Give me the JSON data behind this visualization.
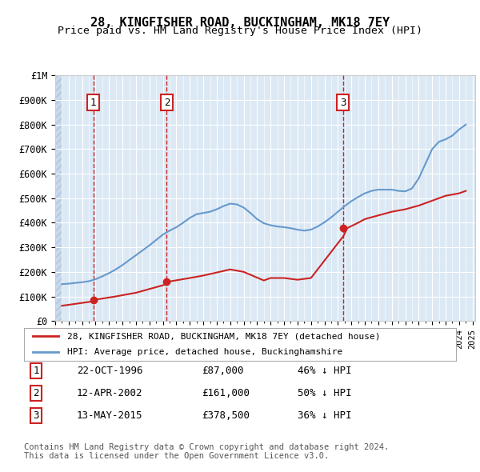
{
  "title": "28, KINGFISHER ROAD, BUCKINGHAM, MK18 7EY",
  "subtitle": "Price paid vs. HM Land Registry's House Price Index (HPI)",
  "ylabel": "",
  "ylim": [
    0,
    1000000
  ],
  "yticks": [
    0,
    100000,
    200000,
    300000,
    400000,
    500000,
    600000,
    700000,
    800000,
    900000,
    1000000
  ],
  "ytick_labels": [
    "£0",
    "£100K",
    "£200K",
    "£300K",
    "£400K",
    "£500K",
    "£600K",
    "£700K",
    "£800K",
    "£900K",
    "£1M"
  ],
  "background_color": "#ffffff",
  "plot_bg_color": "#dce9f5",
  "hatch_color": "#c0d0e8",
  "grid_color": "#ffffff",
  "sale_dates": [
    "1996-10-22",
    "2002-04-12",
    "2015-05-13"
  ],
  "sale_prices": [
    87000,
    161000,
    378500
  ],
  "sale_labels": [
    "1",
    "2",
    "3"
  ],
  "hpi_line_color": "#6699cc",
  "price_line_color": "#cc2222",
  "legend_label_price": "28, KINGFISHER ROAD, BUCKINGHAM, MK18 7EY (detached house)",
  "legend_label_hpi": "HPI: Average price, detached house, Buckinghamshire",
  "table_rows": [
    [
      "1",
      "22-OCT-1996",
      "£87,000",
      "46% ↓ HPI"
    ],
    [
      "2",
      "12-APR-2002",
      "£161,000",
      "50% ↓ HPI"
    ],
    [
      "3",
      "13-MAY-2015",
      "£378,500",
      "36% ↓ HPI"
    ]
  ],
  "footer_text": "Contains HM Land Registry data © Crown copyright and database right 2024.\nThis data is licensed under the Open Government Licence v3.0.",
  "title_fontsize": 11,
  "subtitle_fontsize": 10,
  "tick_fontsize": 8.5,
  "hpi_data_x": [
    1994.5,
    1995.0,
    1995.5,
    1996.0,
    1996.5,
    1997.0,
    1997.5,
    1998.0,
    1998.5,
    1999.0,
    1999.5,
    2000.0,
    2000.5,
    2001.0,
    2001.5,
    2002.0,
    2002.5,
    2003.0,
    2003.5,
    2004.0,
    2004.5,
    2005.0,
    2005.5,
    2006.0,
    2006.5,
    2007.0,
    2007.5,
    2008.0,
    2008.5,
    2009.0,
    2009.5,
    2010.0,
    2010.5,
    2011.0,
    2011.5,
    2012.0,
    2012.5,
    2013.0,
    2013.5,
    2014.0,
    2014.5,
    2015.0,
    2015.5,
    2016.0,
    2016.5,
    2017.0,
    2017.5,
    2018.0,
    2018.5,
    2019.0,
    2019.5,
    2020.0,
    2020.5,
    2021.0,
    2021.5,
    2022.0,
    2022.5,
    2023.0,
    2023.5,
    2024.0,
    2024.5
  ],
  "hpi_data_y": [
    150000,
    152000,
    155000,
    158000,
    162000,
    170000,
    182000,
    195000,
    210000,
    228000,
    248000,
    268000,
    288000,
    308000,
    330000,
    352000,
    368000,
    382000,
    400000,
    420000,
    435000,
    440000,
    445000,
    455000,
    468000,
    478000,
    475000,
    462000,
    440000,
    415000,
    398000,
    390000,
    385000,
    382000,
    378000,
    372000,
    368000,
    372000,
    385000,
    402000,
    422000,
    445000,
    468000,
    488000,
    505000,
    520000,
    530000,
    535000,
    535000,
    535000,
    530000,
    528000,
    540000,
    580000,
    640000,
    700000,
    730000,
    740000,
    755000,
    780000,
    800000
  ],
  "price_data_x": [
    1994.5,
    1996.83,
    1997.0,
    1998.5,
    2000.0,
    2002.3,
    2002.5,
    2004.0,
    2005.0,
    2007.0,
    2008.0,
    2009.5,
    2010.0,
    2011.0,
    2012.0,
    2013.0,
    2015.4,
    2015.7,
    2016.5,
    2017.0,
    2018.0,
    2019.0,
    2020.0,
    2021.0,
    2022.0,
    2023.0,
    2024.0,
    2024.5
  ],
  "price_data_y": [
    62000,
    80000,
    87000,
    100000,
    115000,
    150000,
    161000,
    175000,
    185000,
    210000,
    200000,
    165000,
    175000,
    175000,
    168000,
    175000,
    345000,
    378500,
    400000,
    415000,
    430000,
    445000,
    455000,
    470000,
    490000,
    510000,
    520000,
    530000
  ]
}
